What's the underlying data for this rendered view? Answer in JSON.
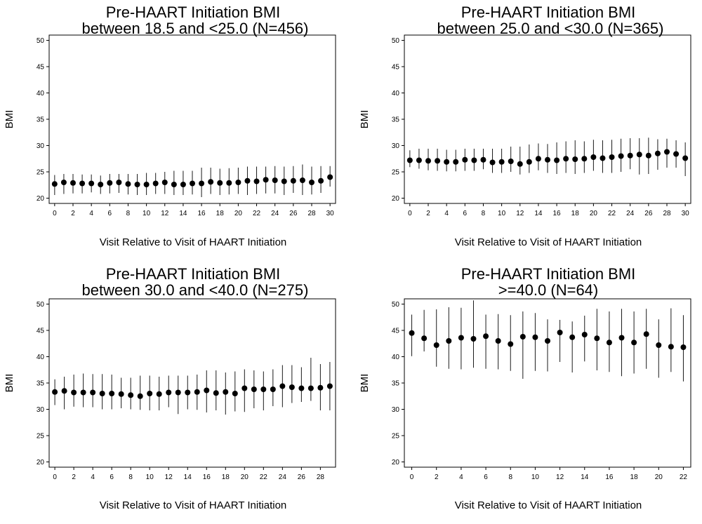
{
  "chart_data": [
    {
      "type": "scatter",
      "title": "Pre-HAART Initiation BMI",
      "subtitle": "between 18.5 and <25.0 (N=456)",
      "xlabel": "Visit Relative to Visit of HAART Initiation",
      "ylabel": "BMI",
      "xlim": [
        -0.6,
        30.6
      ],
      "ylim": [
        19,
        51
      ],
      "xticks": [
        "0",
        "2",
        "4",
        "6",
        "8",
        "10",
        "12",
        "14",
        "16",
        "18",
        "20",
        "22",
        "24",
        "26",
        "28",
        "30"
      ],
      "yticks": [
        "20",
        "25",
        "30",
        "35",
        "40",
        "45",
        "50"
      ],
      "grid": false,
      "legend": "none",
      "series": [
        {
          "x": [
            0,
            1,
            2,
            3,
            4,
            5,
            6,
            7,
            8,
            9,
            10,
            11,
            12,
            13,
            14,
            15,
            16,
            17,
            18,
            19,
            20,
            21,
            22,
            23,
            24,
            25,
            26,
            27,
            28,
            29,
            30
          ],
          "mean": [
            22.7,
            23.0,
            22.9,
            22.8,
            22.8,
            22.6,
            22.9,
            23.0,
            22.7,
            22.6,
            22.6,
            22.8,
            23.0,
            22.6,
            22.6,
            22.8,
            22.8,
            23.1,
            22.9,
            22.9,
            23.0,
            23.3,
            23.2,
            23.5,
            23.4,
            23.2,
            23.3,
            23.4,
            23.0,
            23.3,
            24.0
          ],
          "lower": [
            20.6,
            20.8,
            20.9,
            20.9,
            21.1,
            20.8,
            20.9,
            21.0,
            20.7,
            20.6,
            20.6,
            20.8,
            20.8,
            20.6,
            20.6,
            20.7,
            20.2,
            20.8,
            20.6,
            20.7,
            20.8,
            20.6,
            20.8,
            20.9,
            20.9,
            20.6,
            21.0,
            20.6,
            20.7,
            21.0,
            22.2
          ],
          "upper": [
            24.4,
            24.6,
            24.6,
            24.5,
            24.5,
            24.3,
            24.6,
            24.6,
            24.6,
            24.6,
            24.8,
            24.8,
            25.0,
            25.2,
            25.2,
            25.2,
            25.8,
            25.8,
            25.6,
            25.7,
            25.8,
            26.0,
            26.0,
            26.0,
            26.1,
            26.0,
            26.1,
            26.4,
            26.0,
            26.1,
            26.1
          ]
        }
      ]
    },
    {
      "type": "scatter",
      "title": "Pre-HAART Initiation BMI",
      "subtitle": "between 25.0 and <30.0 (N=365)",
      "xlabel": "Visit Relative to Visit of HAART Initiation",
      "ylabel": "BMI",
      "xlim": [
        -0.6,
        30.6
      ],
      "ylim": [
        19,
        51
      ],
      "xticks": [
        "0",
        "2",
        "4",
        "6",
        "8",
        "10",
        "12",
        "14",
        "16",
        "18",
        "20",
        "22",
        "24",
        "26",
        "28",
        "30"
      ],
      "yticks": [
        "20",
        "25",
        "30",
        "35",
        "40",
        "45",
        "50"
      ],
      "grid": false,
      "legend": "none",
      "series": [
        {
          "x": [
            0,
            1,
            2,
            3,
            4,
            5,
            6,
            7,
            8,
            9,
            10,
            11,
            12,
            13,
            14,
            15,
            16,
            17,
            18,
            19,
            20,
            21,
            22,
            23,
            24,
            25,
            26,
            27,
            28,
            29,
            30
          ],
          "mean": [
            27.2,
            27.2,
            27.1,
            27.1,
            26.9,
            26.9,
            27.3,
            27.2,
            27.3,
            26.8,
            26.9,
            27.0,
            26.5,
            26.9,
            27.5,
            27.3,
            27.2,
            27.5,
            27.4,
            27.5,
            27.8,
            27.6,
            27.8,
            28.0,
            28.1,
            28.3,
            28.1,
            28.5,
            28.8,
            28.4,
            27.6
          ],
          "lower": [
            25.9,
            25.6,
            25.3,
            25.2,
            25.1,
            25.1,
            25.2,
            25.2,
            25.5,
            24.8,
            24.8,
            25.0,
            24.5,
            24.8,
            25.3,
            24.8,
            24.6,
            24.8,
            24.6,
            24.8,
            25.2,
            24.8,
            24.8,
            25.0,
            25.5,
            24.5,
            24.6,
            25.4,
            25.8,
            25.8,
            24.2
          ],
          "upper": [
            29.1,
            29.4,
            29.4,
            29.4,
            29.2,
            29.2,
            29.4,
            29.4,
            29.4,
            29.4,
            29.4,
            29.8,
            29.8,
            30.2,
            30.4,
            30.3,
            30.6,
            30.8,
            31.0,
            30.8,
            31.1,
            31.0,
            31.1,
            31.3,
            31.4,
            31.4,
            31.5,
            31.2,
            31.3,
            31.0,
            30.6
          ]
        }
      ]
    },
    {
      "type": "scatter",
      "title": "Pre-HAART Initiation BMI",
      "subtitle": "between 30.0 and <40.0 (N=275)",
      "xlabel": "Visit Relative to Visit of HAART Initiation",
      "ylabel": "BMI",
      "xlim": [
        -0.6,
        29.6
      ],
      "ylim": [
        19,
        51
      ],
      "xticks": [
        "0",
        "2",
        "4",
        "6",
        "8",
        "10",
        "12",
        "14",
        "16",
        "18",
        "20",
        "22",
        "24",
        "26",
        "28"
      ],
      "yticks": [
        "20",
        "25",
        "30",
        "35",
        "40",
        "45",
        "50"
      ],
      "grid": false,
      "legend": "none",
      "series": [
        {
          "x": [
            0,
            1,
            2,
            3,
            4,
            5,
            6,
            7,
            8,
            9,
            10,
            11,
            12,
            13,
            14,
            15,
            16,
            17,
            18,
            19,
            20,
            21,
            22,
            23,
            24,
            25,
            26,
            27,
            28,
            29
          ],
          "mean": [
            33.3,
            33.5,
            33.2,
            33.2,
            33.2,
            33.0,
            33.0,
            32.9,
            32.7,
            32.5,
            33.0,
            32.9,
            33.2,
            33.2,
            33.2,
            33.3,
            33.6,
            33.1,
            33.3,
            33.0,
            34.0,
            33.8,
            33.8,
            33.8,
            34.4,
            34.2,
            34.0,
            34.0,
            34.1,
            34.4
          ],
          "lower": [
            30.8,
            30.0,
            30.5,
            30.4,
            30.4,
            30.0,
            30.0,
            30.2,
            30.0,
            29.9,
            29.8,
            29.8,
            30.4,
            29.1,
            30.0,
            29.9,
            29.4,
            29.8,
            29.0,
            29.6,
            29.5,
            30.2,
            29.8,
            30.6,
            30.4,
            31.2,
            31.4,
            31.6,
            29.8,
            29.8
          ],
          "upper": [
            35.7,
            36.2,
            36.6,
            36.8,
            36.7,
            36.7,
            36.6,
            36.0,
            36.0,
            36.4,
            36.4,
            36.2,
            36.4,
            36.4,
            36.4,
            36.6,
            37.4,
            37.4,
            37.0,
            37.2,
            37.6,
            37.4,
            37.2,
            37.6,
            38.4,
            38.4,
            38.0,
            39.8,
            38.6,
            39.0
          ]
        }
      ]
    },
    {
      "type": "scatter",
      "title": "Pre-HAART Initiation BMI",
      "subtitle": ">=40.0 (N=64)",
      "xlabel": "Visit Relative to Visit of HAART Initiation",
      "ylabel": "BMI",
      "xlim": [
        -0.6,
        22.6
      ],
      "ylim": [
        19,
        51
      ],
      "xticks": [
        "0",
        "2",
        "4",
        "6",
        "8",
        "10",
        "12",
        "14",
        "16",
        "18",
        "20",
        "22"
      ],
      "yticks": [
        "20",
        "25",
        "30",
        "35",
        "40",
        "45",
        "50"
      ],
      "grid": false,
      "legend": "none",
      "series": [
        {
          "x": [
            0,
            1,
            2,
            3,
            4,
            5,
            6,
            7,
            8,
            9,
            10,
            11,
            12,
            13,
            14,
            15,
            16,
            17,
            18,
            19,
            20,
            21,
            22
          ],
          "mean": [
            44.5,
            43.5,
            42.2,
            43.0,
            43.6,
            43.4,
            43.9,
            43.0,
            42.4,
            43.8,
            43.7,
            43.0,
            44.6,
            43.7,
            44.2,
            43.5,
            42.7,
            43.6,
            42.7,
            44.3,
            42.2,
            41.9,
            41.8
          ],
          "lower": [
            40.1,
            41.0,
            38.1,
            37.7,
            37.6,
            37.9,
            37.7,
            37.6,
            37.3,
            35.8,
            37.3,
            37.2,
            39.0,
            37.0,
            39.1,
            37.4,
            37.1,
            36.3,
            36.8,
            37.7,
            36.0,
            37.1,
            35.3
          ],
          "upper": [
            48.0,
            48.9,
            49.0,
            49.4,
            49.3,
            50.7,
            48.0,
            48.1,
            47.9,
            48.6,
            48.3,
            47.1,
            47.0,
            46.7,
            47.8,
            49.1,
            48.6,
            49.1,
            48.6,
            49.1,
            47.1,
            49.2,
            47.9
          ]
        }
      ]
    }
  ]
}
